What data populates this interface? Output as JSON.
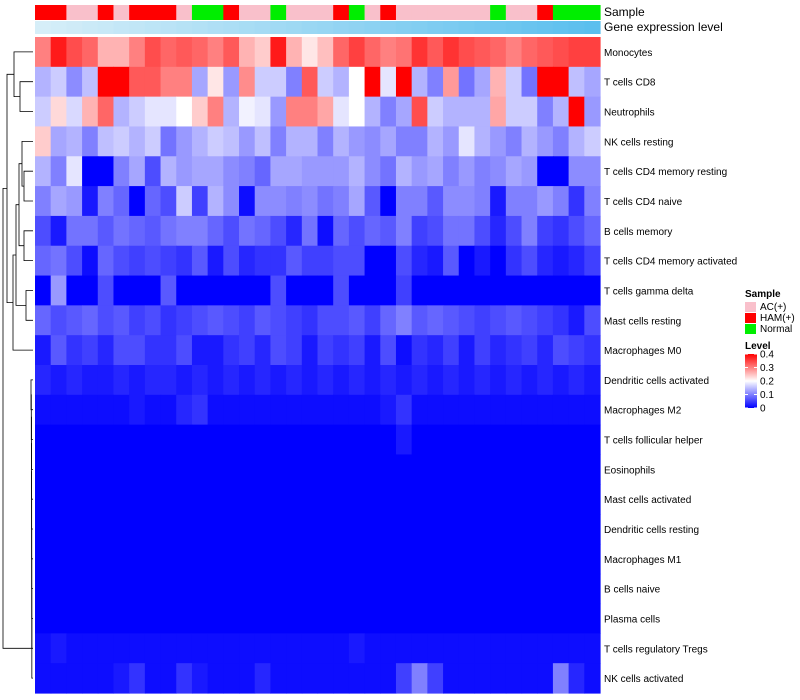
{
  "chart_data": {
    "type": "heatmap",
    "annotation_labels": {
      "sample": "Sample",
      "expression": "Gene expression level"
    },
    "legend": {
      "sample_title": "Sample",
      "sample_entries": [
        {
          "label": "AC(+)",
          "color": "#f9c0cb"
        },
        {
          "label": "HAM(+)",
          "color": "#ff0000"
        },
        {
          "label": "Normal",
          "color": "#00ee00"
        }
      ],
      "level_title": "Level",
      "level_ticks": [
        "0.4",
        "0.3",
        "0.2",
        "0.1",
        "0"
      ],
      "level_range": [
        0,
        0.4
      ]
    },
    "colors": {
      "low": "#0000ff",
      "mid": "#ffffff",
      "high": "#ff0000",
      "expr_light": "#d6eef8",
      "expr_dark": "#5bbfee"
    },
    "sample_groups": [
      "HAM(+)",
      "HAM(+)",
      "AC(+)",
      "AC(+)",
      "HAM(+)",
      "AC(+)",
      "HAM(+)",
      "HAM(+)",
      "HAM(+)",
      "AC(+)",
      "Normal",
      "Normal",
      "HAM(+)",
      "AC(+)",
      "AC(+)",
      "Normal",
      "AC(+)",
      "AC(+)",
      "AC(+)",
      "HAM(+)",
      "Normal",
      "AC(+)",
      "HAM(+)",
      "AC(+)",
      "AC(+)",
      "AC(+)",
      "AC(+)",
      "AC(+)",
      "AC(+)",
      "Normal",
      "AC(+)",
      "AC(+)",
      "HAM(+)",
      "Normal",
      "Normal",
      "Normal"
    ],
    "rows": [
      {
        "label": "Monocytes",
        "values": [
          0.3,
          0.38,
          0.34,
          0.32,
          0.26,
          0.26,
          0.3,
          0.34,
          0.32,
          0.33,
          0.32,
          0.3,
          0.33,
          0.26,
          0.24,
          0.38,
          0.26,
          0.22,
          0.25,
          0.32,
          0.35,
          0.32,
          0.3,
          0.31,
          0.36,
          0.33,
          0.36,
          0.34,
          0.33,
          0.32,
          0.3,
          0.32,
          0.33,
          0.34,
          0.35,
          0.35
        ]
      },
      {
        "label": "T cells CD8",
        "values": [
          0.14,
          0.16,
          0.11,
          0.15,
          0.4,
          0.4,
          0.33,
          0.33,
          0.3,
          0.3,
          0.13,
          0.22,
          0.12,
          0.29,
          0.16,
          0.16,
          0.1,
          0.33,
          0.16,
          0.14,
          0.2,
          0.4,
          0.18,
          0.4,
          0.14,
          0.1,
          0.28,
          0.09,
          0.13,
          0.26,
          0.16,
          0.09,
          0.4,
          0.4,
          0.15,
          0.13
        ]
      },
      {
        "label": "Neutrophils",
        "values": [
          0.16,
          0.23,
          0.17,
          0.26,
          0.32,
          0.14,
          0.16,
          0.18,
          0.18,
          0.2,
          0.24,
          0.3,
          0.14,
          0.19,
          0.18,
          0.12,
          0.3,
          0.3,
          0.27,
          0.18,
          0.2,
          0.14,
          0.1,
          0.13,
          0.34,
          0.16,
          0.14,
          0.14,
          0.14,
          0.27,
          0.16,
          0.16,
          0.1,
          0.14,
          0.4,
          0.12
        ]
      },
      {
        "label": "NK cells resting",
        "values": [
          0.24,
          0.13,
          0.14,
          0.1,
          0.15,
          0.16,
          0.14,
          0.16,
          0.09,
          0.12,
          0.14,
          0.16,
          0.15,
          0.12,
          0.15,
          0.1,
          0.14,
          0.14,
          0.1,
          0.14,
          0.12,
          0.11,
          0.13,
          0.1,
          0.1,
          0.14,
          0.12,
          0.18,
          0.14,
          0.12,
          0.1,
          0.14,
          0.12,
          0.1,
          0.14,
          0.16
        ]
      },
      {
        "label": "T cells CD4 memory resting",
        "values": [
          0.14,
          0.1,
          0.18,
          0.0,
          0.0,
          0.1,
          0.13,
          0.06,
          0.14,
          0.12,
          0.13,
          0.13,
          0.11,
          0.1,
          0.08,
          0.13,
          0.13,
          0.12,
          0.12,
          0.12,
          0.14,
          0.11,
          0.09,
          0.14,
          0.12,
          0.13,
          0.1,
          0.12,
          0.1,
          0.11,
          0.13,
          0.12,
          0.0,
          0.0,
          0.11,
          0.11
        ]
      },
      {
        "label": "T cells CD4 naive",
        "values": [
          0.1,
          0.13,
          0.12,
          0.02,
          0.1,
          0.08,
          0.0,
          0.08,
          0.06,
          0.16,
          0.05,
          0.14,
          0.11,
          0.01,
          0.11,
          0.11,
          0.1,
          0.11,
          0.09,
          0.1,
          0.13,
          0.07,
          0.0,
          0.1,
          0.1,
          0.07,
          0.11,
          0.11,
          0.1,
          0.02,
          0.1,
          0.1,
          0.12,
          0.1,
          0.04,
          0.1
        ]
      },
      {
        "label": "B cells memory",
        "values": [
          0.06,
          0.02,
          0.09,
          0.09,
          0.07,
          0.09,
          0.08,
          0.07,
          0.09,
          0.1,
          0.1,
          0.08,
          0.06,
          0.09,
          0.08,
          0.06,
          0.03,
          0.09,
          0.01,
          0.08,
          0.06,
          0.08,
          0.07,
          0.1,
          0.05,
          0.06,
          0.09,
          0.09,
          0.06,
          0.03,
          0.06,
          0.1,
          0.05,
          0.04,
          0.06,
          0.08
        ]
      },
      {
        "label": "T cells CD4 memory activated",
        "values": [
          0.08,
          0.09,
          0.06,
          0.01,
          0.08,
          0.06,
          0.05,
          0.06,
          0.05,
          0.04,
          0.07,
          0.02,
          0.06,
          0.03,
          0.04,
          0.04,
          0.07,
          0.05,
          0.05,
          0.06,
          0.06,
          0.0,
          0.0,
          0.06,
          0.03,
          0.02,
          0.07,
          0.0,
          0.02,
          0.0,
          0.04,
          0.06,
          0.03,
          0.02,
          0.03,
          0.05
        ]
      },
      {
        "label": "T cells gamma delta",
        "values": [
          0.0,
          0.12,
          0.0,
          0.0,
          0.06,
          0.0,
          0.0,
          0.0,
          0.07,
          0.0,
          0.0,
          0.0,
          0.0,
          0.0,
          0.0,
          0.06,
          0.0,
          0.0,
          0.0,
          0.06,
          0.0,
          0.0,
          0.0,
          0.05,
          0.0,
          0.0,
          0.0,
          0.0,
          0.0,
          0.0,
          0.0,
          0.0,
          0.0,
          0.0,
          0.0,
          0.0
        ]
      },
      {
        "label": "Mast cells resting",
        "values": [
          0.08,
          0.06,
          0.07,
          0.08,
          0.06,
          0.07,
          0.05,
          0.06,
          0.04,
          0.05,
          0.06,
          0.07,
          0.06,
          0.05,
          0.07,
          0.06,
          0.05,
          0.04,
          0.06,
          0.06,
          0.07,
          0.05,
          0.08,
          0.1,
          0.07,
          0.08,
          0.07,
          0.06,
          0.05,
          0.06,
          0.07,
          0.06,
          0.05,
          0.04,
          0.02,
          0.06
        ]
      },
      {
        "label": "Macrophages M0",
        "values": [
          0.02,
          0.07,
          0.04,
          0.05,
          0.03,
          0.06,
          0.06,
          0.04,
          0.04,
          0.06,
          0.02,
          0.02,
          0.04,
          0.05,
          0.03,
          0.06,
          0.05,
          0.02,
          0.05,
          0.04,
          0.05,
          0.02,
          0.06,
          0.01,
          0.04,
          0.03,
          0.05,
          0.02,
          0.05,
          0.03,
          0.04,
          0.05,
          0.03,
          0.06,
          0.05,
          0.04
        ]
      },
      {
        "label": "Dendritic cells activated",
        "values": [
          0.03,
          0.02,
          0.03,
          0.02,
          0.02,
          0.03,
          0.02,
          0.03,
          0.03,
          0.02,
          0.03,
          0.02,
          0.03,
          0.02,
          0.03,
          0.02,
          0.03,
          0.02,
          0.03,
          0.02,
          0.03,
          0.02,
          0.03,
          0.02,
          0.03,
          0.02,
          0.03,
          0.02,
          0.03,
          0.02,
          0.03,
          0.02,
          0.03,
          0.02,
          0.03,
          0.02
        ]
      },
      {
        "label": "Macrophages M2",
        "values": [
          0.01,
          0.01,
          0.01,
          0.01,
          0.01,
          0.01,
          0.02,
          0.01,
          0.01,
          0.03,
          0.04,
          0.01,
          0.01,
          0.01,
          0.01,
          0.01,
          0.01,
          0.01,
          0.01,
          0.01,
          0.01,
          0.01,
          0.02,
          0.04,
          0.01,
          0.01,
          0.01,
          0.01,
          0.01,
          0.01,
          0.01,
          0.01,
          0.01,
          0.01,
          0.01,
          0.01
        ]
      },
      {
        "label": "T cells follicular helper",
        "values": [
          0,
          0,
          0,
          0,
          0,
          0,
          0,
          0,
          0,
          0,
          0,
          0,
          0,
          0,
          0,
          0,
          0,
          0,
          0,
          0,
          0,
          0,
          0,
          0.02,
          0,
          0,
          0,
          0,
          0,
          0,
          0,
          0,
          0,
          0,
          0,
          0
        ]
      },
      {
        "label": "Eosinophils",
        "values": [
          0,
          0,
          0,
          0,
          0,
          0,
          0,
          0,
          0,
          0,
          0,
          0,
          0,
          0,
          0,
          0,
          0,
          0,
          0,
          0,
          0,
          0,
          0,
          0,
          0,
          0,
          0,
          0,
          0,
          0,
          0,
          0,
          0,
          0,
          0,
          0
        ]
      },
      {
        "label": "Mast cells activated",
        "values": [
          0,
          0,
          0,
          0,
          0,
          0,
          0,
          0,
          0,
          0,
          0,
          0,
          0,
          0,
          0,
          0,
          0,
          0,
          0,
          0,
          0,
          0,
          0,
          0,
          0,
          0,
          0,
          0,
          0,
          0,
          0,
          0,
          0,
          0,
          0,
          0
        ]
      },
      {
        "label": "Dendritic cells resting",
        "values": [
          0,
          0,
          0,
          0,
          0,
          0,
          0,
          0,
          0,
          0,
          0,
          0,
          0,
          0,
          0,
          0,
          0,
          0,
          0,
          0,
          0,
          0,
          0,
          0,
          0,
          0,
          0,
          0,
          0,
          0,
          0,
          0,
          0,
          0,
          0,
          0
        ]
      },
      {
        "label": "Macrophages M1",
        "values": [
          0,
          0,
          0,
          0,
          0,
          0,
          0,
          0,
          0,
          0,
          0,
          0,
          0,
          0,
          0,
          0,
          0,
          0,
          0,
          0,
          0,
          0,
          0,
          0,
          0,
          0,
          0,
          0,
          0,
          0,
          0,
          0,
          0,
          0,
          0,
          0
        ]
      },
      {
        "label": "B cells naive",
        "values": [
          0,
          0,
          0,
          0,
          0,
          0,
          0,
          0,
          0,
          0,
          0,
          0,
          0,
          0,
          0,
          0,
          0,
          0,
          0,
          0,
          0,
          0,
          0,
          0,
          0,
          0,
          0,
          0,
          0,
          0,
          0,
          0,
          0,
          0,
          0,
          0
        ]
      },
      {
        "label": "Plasma cells",
        "values": [
          0,
          0,
          0,
          0,
          0,
          0,
          0,
          0,
          0,
          0,
          0,
          0,
          0,
          0,
          0,
          0,
          0,
          0,
          0,
          0,
          0,
          0,
          0,
          0,
          0,
          0,
          0,
          0,
          0,
          0,
          0,
          0,
          0,
          0,
          0,
          0
        ]
      },
      {
        "label": "T cells regulatory  Tregs",
        "values": [
          0.01,
          0.02,
          0.01,
          0.01,
          0.01,
          0.01,
          0.01,
          0.01,
          0.01,
          0.01,
          0.01,
          0.01,
          0.01,
          0.01,
          0.01,
          0.01,
          0.01,
          0.01,
          0.01,
          0.01,
          0.02,
          0.01,
          0.01,
          0.01,
          0.01,
          0.01,
          0.01,
          0.01,
          0.01,
          0.01,
          0.01,
          0.01,
          0.01,
          0.01,
          0.01,
          0.01
        ]
      },
      {
        "label": "NK cells activated",
        "values": [
          0.01,
          0.01,
          0.01,
          0.01,
          0.01,
          0.02,
          0.04,
          0.01,
          0.01,
          0.04,
          0.02,
          0.01,
          0.01,
          0.01,
          0.03,
          0.01,
          0.01,
          0.01,
          0.01,
          0.01,
          0.01,
          0.01,
          0.01,
          0.05,
          0.1,
          0.05,
          0.01,
          0.01,
          0.01,
          0.01,
          0.01,
          0.01,
          0.01,
          0.1,
          0.03,
          0.01
        ]
      }
    ]
  }
}
